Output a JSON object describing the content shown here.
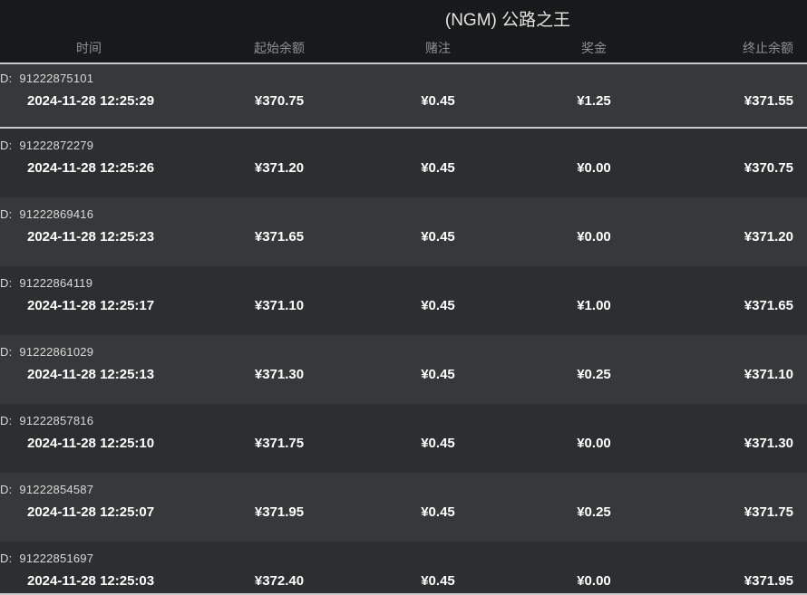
{
  "title": "(NGM) 公路之王",
  "colors": {
    "header_bg": "#17191b",
    "row_light": "#35393a",
    "row_dark": "#2b2f30",
    "separator_line": "#c9cbcb",
    "value_text": "#ffffff",
    "column_header_text": "#8f9294"
  },
  "table": {
    "id_prefix": "D:",
    "columns": [
      "时间",
      "起始余额",
      "赌注",
      "奖金",
      "终止余额"
    ],
    "rows": [
      {
        "id": "91222875101",
        "time": "2024-11-28 12:25:29",
        "start": "¥370.75",
        "bet": "¥0.45",
        "prize": "¥1.25",
        "end": "¥371.55"
      },
      {
        "id": "91222872279",
        "time": "2024-11-28 12:25:26",
        "start": "¥371.20",
        "bet": "¥0.45",
        "prize": "¥0.00",
        "end": "¥370.75"
      },
      {
        "id": "91222869416",
        "time": "2024-11-28 12:25:23",
        "start": "¥371.65",
        "bet": "¥0.45",
        "prize": "¥0.00",
        "end": "¥371.20"
      },
      {
        "id": "91222864119",
        "time": "2024-11-28 12:25:17",
        "start": "¥371.10",
        "bet": "¥0.45",
        "prize": "¥1.00",
        "end": "¥371.65"
      },
      {
        "id": "91222861029",
        "time": "2024-11-28 12:25:13",
        "start": "¥371.30",
        "bet": "¥0.45",
        "prize": "¥0.25",
        "end": "¥371.10"
      },
      {
        "id": "91222857816",
        "time": "2024-11-28 12:25:10",
        "start": "¥371.75",
        "bet": "¥0.45",
        "prize": "¥0.00",
        "end": "¥371.30"
      },
      {
        "id": "91222854587",
        "time": "2024-11-28 12:25:07",
        "start": "¥371.95",
        "bet": "¥0.45",
        "prize": "¥0.25",
        "end": "¥371.75"
      },
      {
        "id": "91222851697",
        "time": "2024-11-28 12:25:03",
        "start": "¥372.40",
        "bet": "¥0.45",
        "prize": "¥0.00",
        "end": "¥371.95"
      }
    ]
  }
}
